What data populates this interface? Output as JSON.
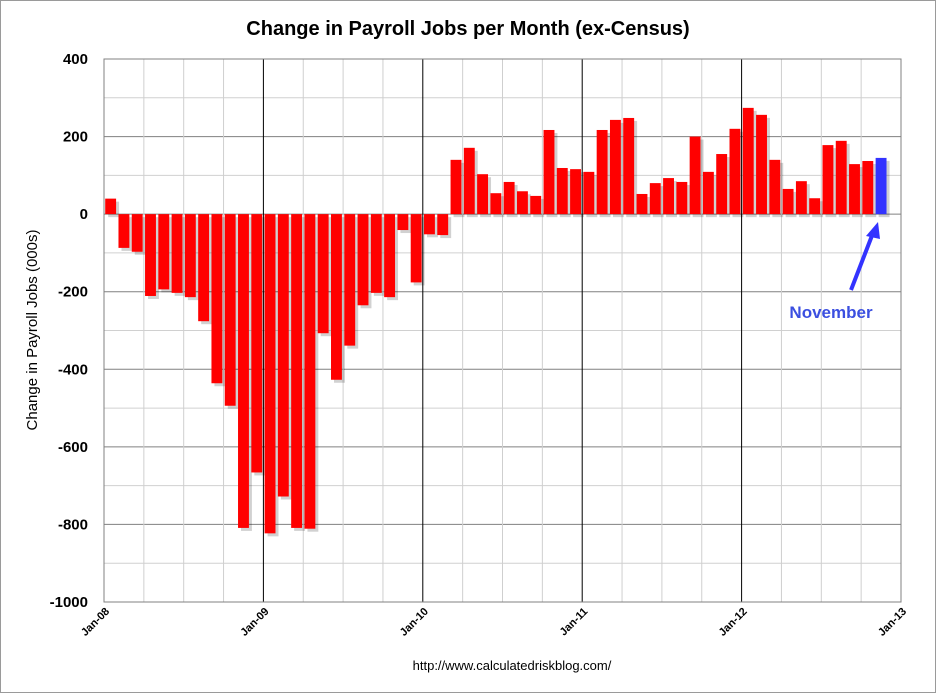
{
  "chart_data": {
    "type": "bar",
    "title": "Change in Payroll Jobs per Month (ex-Census)",
    "xlabel": "",
    "ylabel": "Change in Payroll Jobs (000s)",
    "ylim": [
      -1000,
      400
    ],
    "yticks": [
      400,
      200,
      0,
      -200,
      -400,
      -600,
      -800,
      -1000
    ],
    "ytick_labels": [
      "400",
      "200",
      "0",
      "-200",
      "-400",
      "-600",
      "-800",
      "-1000"
    ],
    "xtick_labels": [
      "Jan-08",
      "Jan-09",
      "Jan-10",
      "Jan-11",
      "Jan-12",
      "Jan-13"
    ],
    "x_start": "Jan-08",
    "grid": true,
    "colors": {
      "bar": "#ff0000",
      "highlight": "#3333ff"
    },
    "values": [
      40,
      -87,
      -97,
      -211,
      -194,
      -203,
      -214,
      -276,
      -436,
      -494,
      -809,
      -666,
      -823,
      -728,
      -809,
      -811,
      -307,
      -427,
      -339,
      -235,
      -203,
      -214,
      -41,
      -176,
      -52,
      -54,
      140,
      171,
      103,
      54,
      83,
      59,
      47,
      217,
      119,
      116,
      109,
      217,
      243,
      248,
      52,
      80,
      93,
      83,
      200,
      109,
      155,
      220,
      274,
      256,
      140,
      65,
      85,
      41,
      178,
      189,
      129,
      137,
      145
    ],
    "highlight_index": 58,
    "annotation": "November",
    "source": "http://www.calculatedriskblog.com/"
  }
}
